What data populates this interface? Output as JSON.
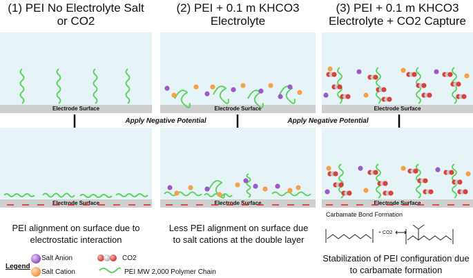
{
  "columns": [
    {
      "heading_line1": "(1)  PEI No Electrolyte Salt",
      "heading_line2": "or CO2",
      "caption_line1": "PEI alignment on surface due to",
      "caption_line2": "electrostatic interaction"
    },
    {
      "heading_line1": "(2)  PEI + 0.1 m KHCO3",
      "heading_line2": "Electrolyte",
      "caption_line1": "Less PEI alignment on surface due",
      "caption_line2": "to salt cations at the double layer"
    },
    {
      "heading_line1": "(3)  PEI + 0.1 m KHCO3",
      "heading_line2": "Electrolyte + CO2 Capture",
      "caption_line1": "Stabilization of PEI configuration due",
      "caption_line2": "to carbamate formation"
    }
  ],
  "electrode_label": "Electrode Surface",
  "potential_label": "Apply Negative Potential",
  "carbamate": {
    "title": "Carbamate Bond Formation",
    "co2_text": "+ CO2",
    "arrow": "⟷"
  },
  "legend": {
    "title": "Legend",
    "salt_anion": "Salt Anion",
    "salt_cation": "Salt Cation",
    "co2": "CO2",
    "pei_chain": "PEI MW 2,000 Polymer Chain"
  },
  "colors": {
    "panel": "#e6f3f7",
    "electrode": "#cfcfcf",
    "polymer": "#5fd35f",
    "anion": "#9b59c9",
    "cation": "#f5a04a",
    "co2_red": "#d9413b",
    "co2_grey": "#c7c7c7",
    "negative_charge": "#e02020"
  }
}
